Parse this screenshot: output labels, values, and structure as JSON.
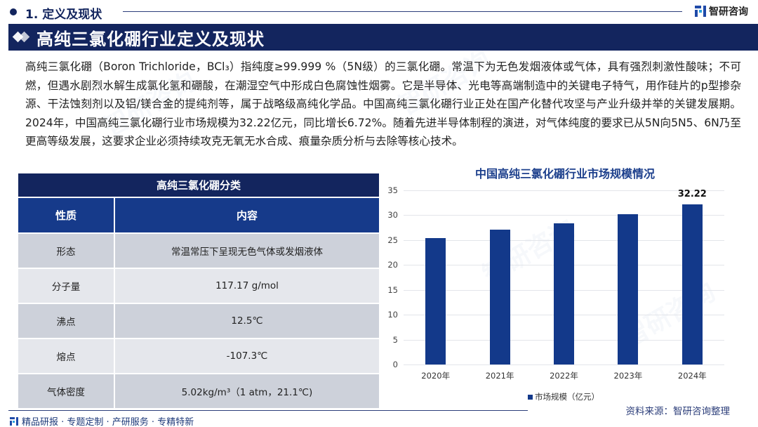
{
  "header": {
    "section": "1. 定义及现状",
    "brand": "智研咨询",
    "banner_title": "高纯三氯化硼行业定义及现状"
  },
  "intro": {
    "paragraph": "高纯三氯化硼（Boron Trichloride，BCl₃）指纯度≥99.999 %（5N级）的三氯化硼。常温下为无色发烟液体或气体，具有强烈刺激性酸味；不可燃，但遇水剧烈水解生成氯化氢和硼酸，在潮湿空气中形成白色腐蚀性烟雾。它是半导体、光电等高端制造中的关键电子特气，用作硅片的p型掺杂源、干法蚀刻剂以及铝/镁合金的提纯剂等，属于战略级高纯化学品。中国高纯三氯化硼行业正处在国产化替代攻坚与产业升级并举的关键发展期。2024年，中国高纯三氯化硼行业市场规模为32.22亿元，同比增长6.72%。随着先进半导体制程的演进，对气体纯度的要求已从5N向5N5、6N乃至更高等级发展，这要求企业必须持续攻克无氧无水合成、痕量杂质分析与去除等核心技术。"
  },
  "table": {
    "title": "高纯三氯化硼分类",
    "headers": [
      "性质",
      "内容"
    ],
    "rows": [
      {
        "property": "形态",
        "content": "常温常压下呈现无色气体或发烟液体"
      },
      {
        "property": "分子量",
        "content": "117.17 g/mol"
      },
      {
        "property": "沸点",
        "content": "12.5℃"
      },
      {
        "property": "熔点",
        "content": "-107.3℃"
      },
      {
        "property": "气体密度",
        "content": "5.02kg/m³（1 atm，21.1℃)"
      }
    ]
  },
  "chart_data": {
    "type": "bar",
    "title": "中国高纯三氯化硼行业市场规模情况",
    "categories": [
      "2020年",
      "2021年",
      "2022年",
      "2023年",
      "2024年"
    ],
    "series": [
      {
        "name": "市场规模（亿元）",
        "values": [
          25.4,
          27.1,
          28.4,
          30.2,
          32.22
        ],
        "color": "#13398a"
      }
    ],
    "data_labels": {
      "2024年": "32.22"
    },
    "xlabel": "",
    "ylabel": "",
    "ylim": [
      0,
      35
    ],
    "yticks": [
      0,
      5,
      10,
      15,
      20,
      25,
      30,
      35
    ],
    "grid": true,
    "legend_position": "bottom"
  },
  "footer": {
    "tagline": "精品研报 · 专题定制 · 产研服务 · 专精特新",
    "source": "资料来源：智研咨询整理"
  },
  "colors": {
    "navy": "#13255e",
    "bar": "#13398a",
    "table_header": "#163a8a",
    "row_dark": "#cdd1da",
    "row_light": "#e5e7ec"
  }
}
